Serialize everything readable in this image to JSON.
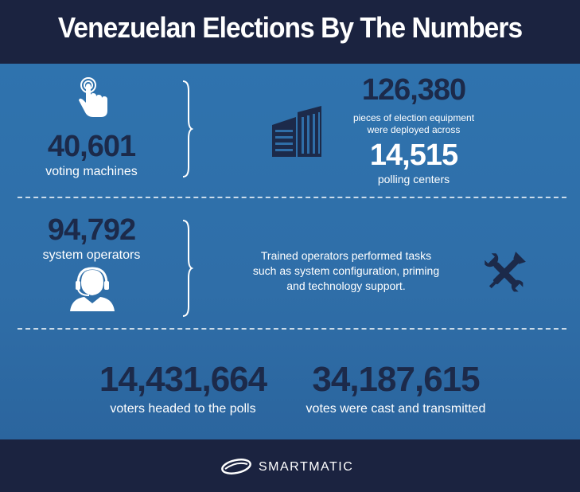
{
  "title": "Venezuelan Elections By The Numbers",
  "machines": {
    "number": "40,601",
    "label": "voting machines",
    "icon": "hand-pointer-icon"
  },
  "equipment": {
    "number": "126,380",
    "label_line1": "pieces of election equipment",
    "label_line2": "were deployed across",
    "centers_number": "14,515",
    "centers_label": "polling centers",
    "icon": "building-icon"
  },
  "operators": {
    "number": "94,792",
    "label": "system operators",
    "icon": "headset-operator-icon",
    "description_line1": "Trained operators performed tasks",
    "description_line2": "such as system configuration, priming",
    "description_line3": "and technology support.",
    "tools_icon": "wrench-screwdriver-icon"
  },
  "voters": {
    "number": "14,431,664",
    "label": "voters headed to the polls"
  },
  "votes": {
    "number": "34,187,615",
    "label": "votes were cast and transmitted"
  },
  "footer": {
    "brand": "SMARTMATIC",
    "icon": "smartmatic-logo-icon"
  },
  "colors": {
    "header_bg": "#1b2340",
    "panel_bg": "#2f6ea8",
    "number_color": "#1c2a4a",
    "text_color": "#ffffff"
  }
}
